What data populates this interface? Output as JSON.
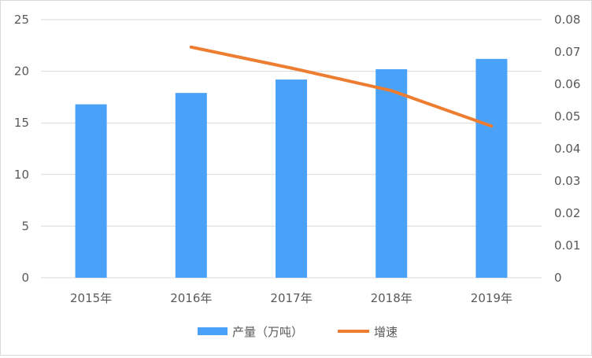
{
  "chart_data": {
    "type": "bar+line",
    "categories": [
      "2015年",
      "2016年",
      "2017年",
      "2018年",
      "2019年"
    ],
    "series": [
      {
        "name": "产量（万吨）",
        "type": "bar",
        "axis": "left",
        "color": "#4aa2f8",
        "values": [
          16.8,
          17.9,
          19.2,
          20.2,
          21.2
        ]
      },
      {
        "name": "增速",
        "type": "line",
        "axis": "right",
        "color": "#ed7d31",
        "values": [
          null,
          0.0715,
          0.065,
          0.058,
          0.047
        ]
      }
    ],
    "left_axis": {
      "ylim": [
        0,
        25
      ],
      "ticks": [
        "0",
        "5",
        "10",
        "15",
        "20",
        "25"
      ]
    },
    "right_axis": {
      "ylim": [
        0,
        0.08
      ],
      "ticks": [
        "0",
        "0.01",
        "0.02",
        "0.03",
        "0.04",
        "0.05",
        "0.06",
        "0.07",
        "0.08"
      ]
    },
    "grid": true,
    "legend_placement": "bottom"
  }
}
